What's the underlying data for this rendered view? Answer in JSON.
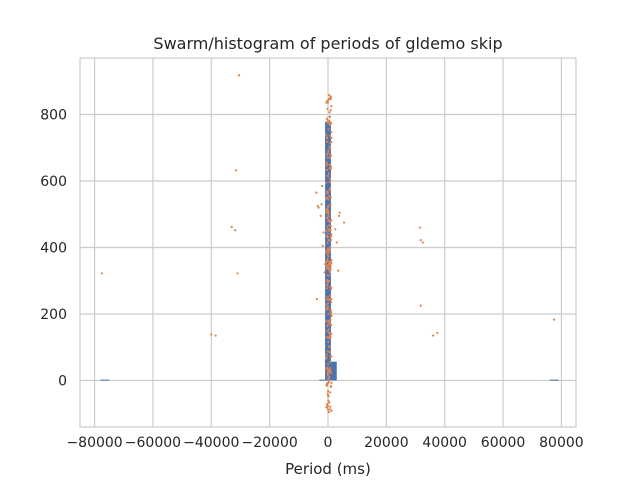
{
  "chart_data": {
    "type": "scatter",
    "title": "Swarm/histogram of periods of gldemo skip",
    "xlabel": "Period (ms)",
    "ylabel": "",
    "xlim": [
      -85000,
      85000
    ],
    "ylim": [
      -140,
      970
    ],
    "x_ticks": [
      -80000,
      -60000,
      -40000,
      -20000,
      0,
      20000,
      40000,
      60000,
      80000
    ],
    "x_tick_labels": [
      "−80000",
      "−60000",
      "−40000",
      "−20000",
      "0",
      "20000",
      "40000",
      "60000",
      "80000"
    ],
    "y_ticks": [
      0,
      200,
      400,
      600,
      800
    ],
    "y_tick_labels": [
      "0",
      "200",
      "400",
      "600",
      "800"
    ],
    "grid": true,
    "colors": {
      "bars": "#4c72b0",
      "points": "#dd8452",
      "grid": "#cccccc"
    },
    "histogram": [
      {
        "x0": -78000,
        "x1": -75000,
        "value": 1
      },
      {
        "x0": -3000,
        "x1": -1000,
        "value": 1
      },
      {
        "x0": -1000,
        "x1": 1000,
        "value": 777
      },
      {
        "x0": 1000,
        "x1": 3000,
        "value": 55
      },
      {
        "x0": 76000,
        "x1": 79000,
        "value": 1
      }
    ],
    "swarm_points": [
      {
        "x": -77500,
        "y": 322
      },
      {
        "x": -40000,
        "y": 138
      },
      {
        "x": -38500,
        "y": 135
      },
      {
        "x": -33000,
        "y": 462
      },
      {
        "x": -31800,
        "y": 452
      },
      {
        "x": -31500,
        "y": 632
      },
      {
        "x": -31000,
        "y": 322
      },
      {
        "x": -30500,
        "y": 918
      },
      {
        "x": -4000,
        "y": 565
      },
      {
        "x": -3800,
        "y": 245
      },
      {
        "x": -3500,
        "y": 525
      },
      {
        "x": -3200,
        "y": 520
      },
      {
        "x": -2500,
        "y": 495
      },
      {
        "x": -2200,
        "y": 530
      },
      {
        "x": -2000,
        "y": 585
      },
      {
        "x": -1800,
        "y": 405
      },
      {
        "x": -1500,
        "y": 445
      },
      {
        "x": -1200,
        "y": 325
      },
      {
        "x": -1000,
        "y": 350
      },
      {
        "x": -800,
        "y": 250
      },
      {
        "x": -600,
        "y": 180
      },
      {
        "x": 2500,
        "y": 455
      },
      {
        "x": 3000,
        "y": 415
      },
      {
        "x": 3500,
        "y": 330
      },
      {
        "x": 3800,
        "y": 495
      },
      {
        "x": 4000,
        "y": 505
      },
      {
        "x": 5500,
        "y": 475
      },
      {
        "x": 31500,
        "y": 460
      },
      {
        "x": 31800,
        "y": 422
      },
      {
        "x": 32500,
        "y": 415
      },
      {
        "x": 31800,
        "y": 225
      },
      {
        "x": 36000,
        "y": 135
      },
      {
        "x": 37500,
        "y": 143
      },
      {
        "x": 77500,
        "y": 183
      }
    ],
    "center_column": {
      "x_min": -600,
      "x_max": 1200,
      "y_min": -95,
      "y_max": 885
    }
  }
}
